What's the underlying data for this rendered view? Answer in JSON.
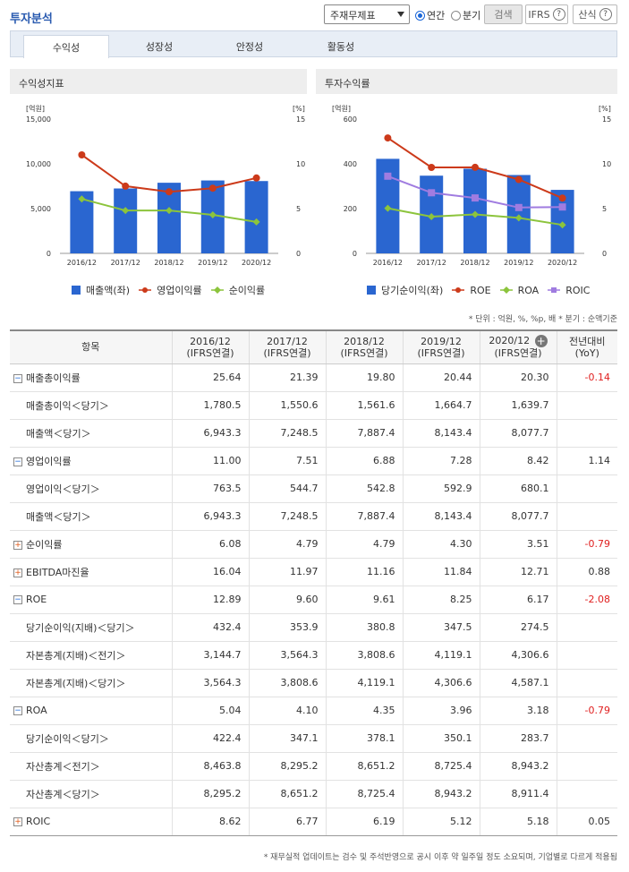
{
  "header": {
    "title": "투자분석",
    "select_value": "주재무제표",
    "radio_annual": "연간",
    "radio_quarter": "분기",
    "search_button": "검색",
    "ifrs_button": "IFRS",
    "formula_button": "산식",
    "help_glyph": "?"
  },
  "tabs": [
    "수익성",
    "성장성",
    "안정성",
    "활동성"
  ],
  "left_chart": {
    "panel_title": "수익성지표",
    "left_unit": "[억원]",
    "right_unit": "[%]",
    "legend": [
      "매출액(좌)",
      "영업이익률",
      "순이익률"
    ],
    "colors": {
      "bar": "#2a66d0",
      "line1": "#cc3a1a",
      "line2": "#8cc43c"
    }
  },
  "right_chart": {
    "panel_title": "투자수익률",
    "left_unit": "[억원]",
    "right_unit": "[%]",
    "legend": [
      "당기순이익(좌)",
      "ROE",
      "ROA",
      "ROIC"
    ],
    "colors": {
      "bar": "#2a66d0",
      "line1": "#cc3a1a",
      "line2": "#8cc43c",
      "line3": "#a07ce0"
    }
  },
  "chart_data": [
    {
      "type": "bar",
      "title": "수익성지표",
      "categories": [
        "2016/12",
        "2017/12",
        "2018/12",
        "2019/12",
        "2020/12"
      ],
      "ylabel": "[억원]",
      "y2label": "[%]",
      "ylim": [
        0,
        15000
      ],
      "y2lim": [
        0,
        15
      ],
      "yticks": [
        "0",
        "5,000",
        "10,000",
        "15,000"
      ],
      "y2ticks": [
        "0",
        "5",
        "10",
        "15"
      ],
      "series": [
        {
          "name": "매출액(좌)",
          "type": "bar",
          "axis": "left",
          "values": [
            6943.3,
            7248.5,
            7887.4,
            8143.4,
            8077.7
          ]
        },
        {
          "name": "영업이익률",
          "type": "line",
          "axis": "right",
          "values": [
            11.0,
            7.51,
            6.88,
            7.28,
            8.42
          ]
        },
        {
          "name": "순이익률",
          "type": "line",
          "axis": "right",
          "values": [
            6.08,
            4.79,
            4.79,
            4.3,
            3.51
          ]
        }
      ]
    },
    {
      "type": "bar",
      "title": "투자수익률",
      "categories": [
        "2016/12",
        "2017/12",
        "2018/12",
        "2019/12",
        "2020/12"
      ],
      "ylabel": "[억원]",
      "y2label": "[%]",
      "ylim": [
        0,
        600
      ],
      "y2lim": [
        0,
        15
      ],
      "yticks": [
        "0",
        "200",
        "400",
        "600"
      ],
      "y2ticks": [
        "0",
        "5",
        "10",
        "15"
      ],
      "series": [
        {
          "name": "당기순이익(좌)",
          "type": "bar",
          "axis": "left",
          "values": [
            422.4,
            347.1,
            378.1,
            350.1,
            283.7
          ]
        },
        {
          "name": "ROE",
          "type": "line",
          "axis": "right",
          "values": [
            12.89,
            9.6,
            9.61,
            8.25,
            6.17
          ]
        },
        {
          "name": "ROA",
          "type": "line",
          "axis": "right",
          "values": [
            5.04,
            4.1,
            4.35,
            3.96,
            3.18
          ]
        },
        {
          "name": "ROIC",
          "type": "line",
          "axis": "right",
          "values": [
            8.62,
            6.77,
            6.19,
            5.12,
            5.18
          ]
        }
      ]
    }
  ],
  "unit_note": "* 단위 : 억원, %, %p, 배   * 분기 : 순액기준",
  "table": {
    "headers": [
      {
        "l1": "항목",
        "l2": ""
      },
      {
        "l1": "2016/12",
        "l2": "(IFRS연결)"
      },
      {
        "l1": "2017/12",
        "l2": "(IFRS연결)"
      },
      {
        "l1": "2018/12",
        "l2": "(IFRS연결)"
      },
      {
        "l1": "2019/12",
        "l2": "(IFRS연결)"
      },
      {
        "l1": "2020/12",
        "l2": "(IFRS연결)"
      },
      {
        "l1": "전년대비",
        "l2": "(YoY)"
      }
    ],
    "expand_glyph": "+",
    "rows": [
      {
        "kind": "minus",
        "label": "매출총이익률",
        "vals": [
          "25.64",
          "21.39",
          "19.80",
          "20.44",
          "20.30"
        ],
        "yoy": "-0.14",
        "neg": true
      },
      {
        "kind": "sub",
        "label": "매출총이익＜당기＞",
        "vals": [
          "1,780.5",
          "1,550.6",
          "1,561.6",
          "1,664.7",
          "1,639.7"
        ],
        "yoy": ""
      },
      {
        "kind": "sub",
        "label": "매출액＜당기＞",
        "vals": [
          "6,943.3",
          "7,248.5",
          "7,887.4",
          "8,143.4",
          "8,077.7"
        ],
        "yoy": ""
      },
      {
        "kind": "minus",
        "label": "영업이익률",
        "vals": [
          "11.00",
          "7.51",
          "6.88",
          "7.28",
          "8.42"
        ],
        "yoy": "1.14",
        "neg": false
      },
      {
        "kind": "sub",
        "label": "영업이익＜당기＞",
        "vals": [
          "763.5",
          "544.7",
          "542.8",
          "592.9",
          "680.1"
        ],
        "yoy": ""
      },
      {
        "kind": "sub",
        "label": "매출액＜당기＞",
        "vals": [
          "6,943.3",
          "7,248.5",
          "7,887.4",
          "8,143.4",
          "8,077.7"
        ],
        "yoy": ""
      },
      {
        "kind": "plus",
        "label": "순이익률",
        "vals": [
          "6.08",
          "4.79",
          "4.79",
          "4.30",
          "3.51"
        ],
        "yoy": "-0.79",
        "neg": true
      },
      {
        "kind": "plus",
        "label": "EBITDA마진율",
        "vals": [
          "16.04",
          "11.97",
          "11.16",
          "11.84",
          "12.71"
        ],
        "yoy": "0.88",
        "neg": false
      },
      {
        "kind": "minus",
        "label": "ROE",
        "vals": [
          "12.89",
          "9.60",
          "9.61",
          "8.25",
          "6.17"
        ],
        "yoy": "-2.08",
        "neg": true
      },
      {
        "kind": "sub",
        "label": "당기순이익(지배)＜당기＞",
        "vals": [
          "432.4",
          "353.9",
          "380.8",
          "347.5",
          "274.5"
        ],
        "yoy": ""
      },
      {
        "kind": "sub",
        "label": "자본총계(지배)＜전기＞",
        "vals": [
          "3,144.7",
          "3,564.3",
          "3,808.6",
          "4,119.1",
          "4,306.6"
        ],
        "yoy": ""
      },
      {
        "kind": "sub",
        "label": "자본총계(지배)＜당기＞",
        "vals": [
          "3,564.3",
          "3,808.6",
          "4,119.1",
          "4,306.6",
          "4,587.1"
        ],
        "yoy": ""
      },
      {
        "kind": "minus",
        "label": "ROA",
        "vals": [
          "5.04",
          "4.10",
          "4.35",
          "3.96",
          "3.18"
        ],
        "yoy": "-0.79",
        "neg": true
      },
      {
        "kind": "sub",
        "label": "당기순이익＜당기＞",
        "vals": [
          "422.4",
          "347.1",
          "378.1",
          "350.1",
          "283.7"
        ],
        "yoy": ""
      },
      {
        "kind": "sub",
        "label": "자산총계＜전기＞",
        "vals": [
          "8,463.8",
          "8,295.2",
          "8,651.2",
          "8,725.4",
          "8,943.2"
        ],
        "yoy": ""
      },
      {
        "kind": "sub",
        "label": "자산총계＜당기＞",
        "vals": [
          "8,295.2",
          "8,651.2",
          "8,725.4",
          "8,943.2",
          "8,911.4"
        ],
        "yoy": ""
      },
      {
        "kind": "plus",
        "label": "ROIC",
        "vals": [
          "8.62",
          "6.77",
          "6.19",
          "5.12",
          "5.18"
        ],
        "yoy": "0.05",
        "neg": false
      }
    ]
  },
  "footer_note": "* 재무실적 업데이트는 검수 및 주석반영으로 공시 이후 약 일주일 정도 소요되며, 기업별로 다르게 적용됨"
}
